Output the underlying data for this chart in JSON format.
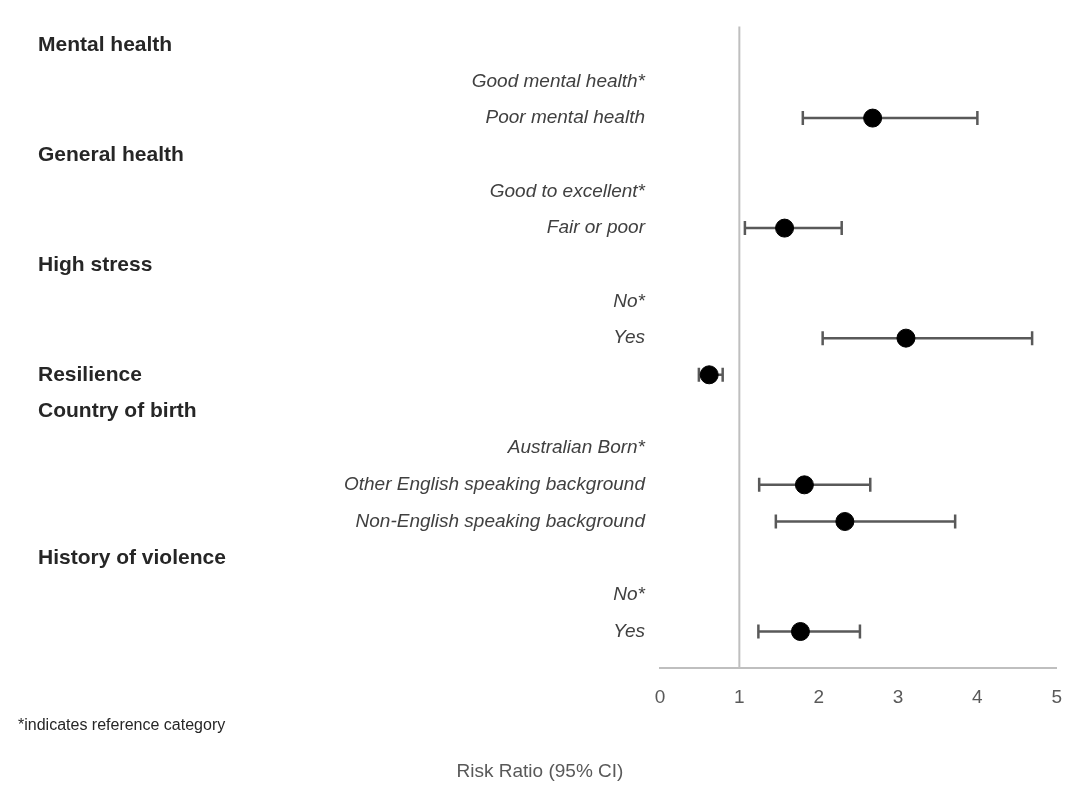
{
  "chart_data": {
    "type": "scatter",
    "orientation": "horizontal",
    "categories": [
      null,
      "Good mental health*",
      "Poor mental health",
      null,
      "Good to excellent*",
      "Fair or poor",
      null,
      "No*",
      "Yes",
      null,
      null,
      "Australian Born*",
      "Other English speaking background",
      "Non-English speaking background",
      null,
      "No*",
      "Yes"
    ],
    "y2_categories": [
      "Mental health",
      null,
      null,
      "General health",
      null,
      null,
      "High stress",
      null,
      null,
      "Resilience",
      "Country of birth",
      null,
      null,
      null,
      "History of violence",
      null,
      null
    ],
    "values": [
      null,
      null,
      2.68,
      null,
      null,
      1.57,
      null,
      null,
      3.1,
      0.62,
      null,
      null,
      1.82,
      2.33,
      null,
      null,
      1.77
    ],
    "errors": [
      null,
      null,
      [
        1.8,
        4.0
      ],
      null,
      null,
      [
        1.07,
        2.29
      ],
      null,
      null,
      [
        2.05,
        4.69
      ],
      [
        0.49,
        0.79
      ],
      null,
      null,
      [
        1.25,
        2.65
      ],
      [
        1.46,
        3.72
      ],
      null,
      null,
      [
        1.24,
        2.52
      ]
    ],
    "color": "#000000",
    "marker": "circle",
    "xlim": [
      0,
      5
    ],
    "xticks": [
      0,
      1,
      2,
      3,
      4,
      5
    ],
    "xlabel": "Risk Ratio (95% CI)",
    "ref_lines": [
      {
        "axis": "x",
        "value": 1,
        "color": "#bfbfbf"
      }
    ],
    "annotations": [
      "*indicates reference category"
    ],
    "grid": false,
    "legend": false
  }
}
